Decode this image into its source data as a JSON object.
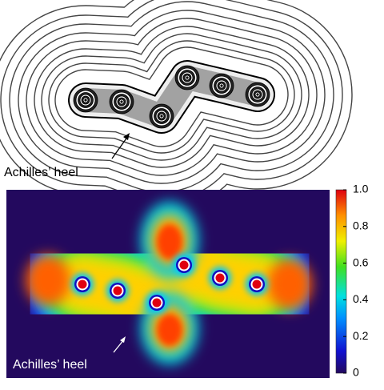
{
  "top_panel": {
    "annotation": "Achilles’ heel"
  },
  "bottom_panel": {
    "annotation": "Achilles’ heel",
    "colorbar": {
      "lim": [
        0,
        1
      ],
      "ticks": [
        0,
        0.2,
        0.4,
        0.6,
        0.8,
        {
          "value": 1,
          "label": "1.0"
        }
      ]
    }
  }
}
